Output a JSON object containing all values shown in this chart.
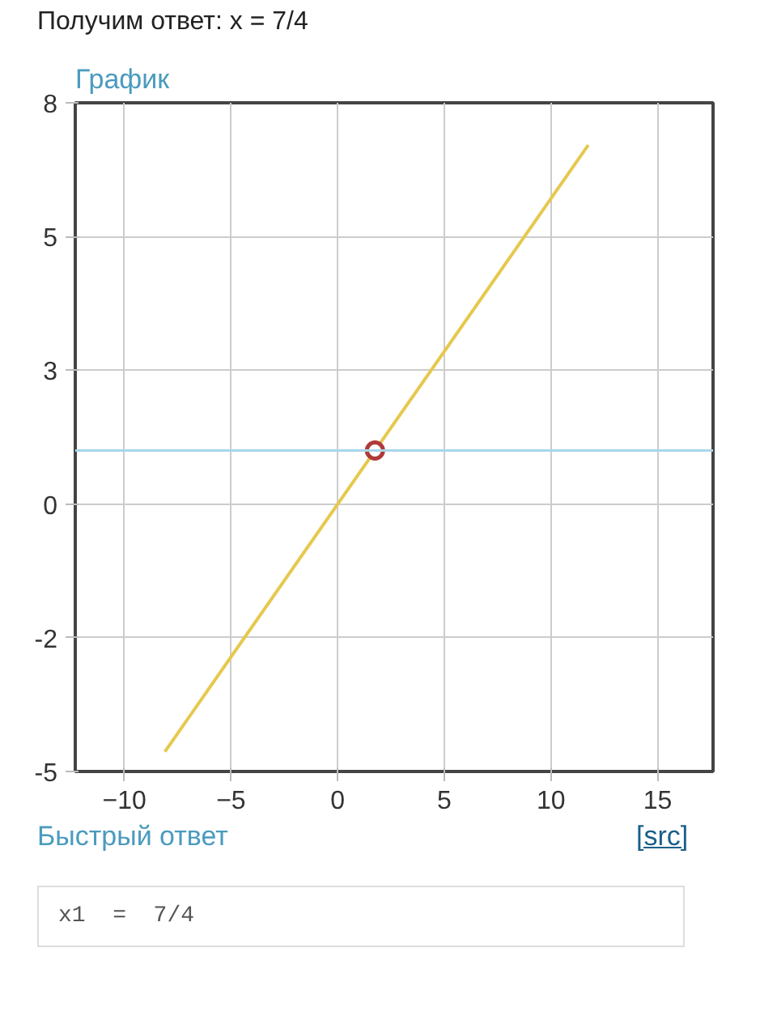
{
  "chart_data": {
    "type": "line",
    "title": "График",
    "xlim": [
      -12.3,
      17.6
    ],
    "ylim": [
      -5,
      7.5
    ],
    "xticks": [
      -10,
      -5,
      0,
      5,
      10,
      15
    ],
    "yticks": [
      {
        "value": -5,
        "label": "-5"
      },
      {
        "value": -2.5,
        "label": "-2"
      },
      {
        "value": 0,
        "label": "0"
      },
      {
        "value": 2.5,
        "label": "3"
      },
      {
        "value": 5,
        "label": "5"
      },
      {
        "value": 7.5,
        "label": "8"
      }
    ],
    "grid": true,
    "series": [
      {
        "color": "#e6c84e",
        "x": [
          -8.1,
          11.75
        ],
        "values": [
          -4.63,
          6.71
        ]
      },
      {
        "type": "scatter",
        "color": "#b03a3a",
        "marker": "circle",
        "x": [
          1.75
        ],
        "values": [
          1
        ]
      }
    ],
    "ref_lines": [
      {
        "axis": "y",
        "value": 1,
        "color": "#a9d6ea"
      }
    ],
    "annotations": [
      "Получим ответ: x = 7/4",
      "Быстрый ответ",
      "[src]",
      "x1  =  7/4"
    ]
  }
}
